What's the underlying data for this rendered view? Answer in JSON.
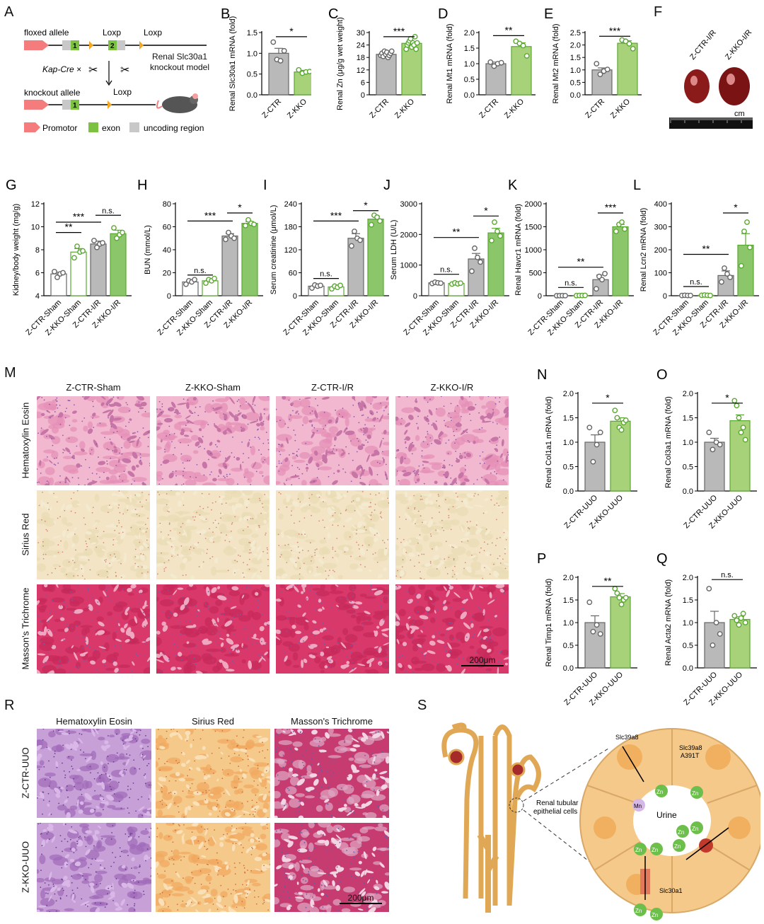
{
  "panels": {
    "A": {
      "letter": "A",
      "floxed_allele": "floxed allele",
      "loxp1": "Loxp",
      "loxp2": "Loxp",
      "kapcre": "Kap-Cre ×",
      "knockout_allele": "knockout allele",
      "loxp3": "Loxp",
      "model_line1": "Renal Slc30a1",
      "model_line2": "knockout model",
      "legend_promotor": "Promotor",
      "legend_exon": "exon",
      "legend_uncoding": "uncoding region",
      "exon1": "1",
      "exon2": "2",
      "exon1b": "1"
    },
    "F": {
      "letter": "F",
      "label1": "Z-CTR-I/R",
      "label2": "Z-KKO-I/R",
      "ruler_unit": "cm"
    },
    "M": {
      "letter": "M",
      "cols": [
        "Z-CTR-Sham",
        "Z-KKO-Sham",
        "Z-CTR-I/R",
        "Z-KKO-I/R"
      ],
      "rows": [
        "Hematoxylin Eosin",
        "Sirius Red",
        "Masson's Trichrome"
      ],
      "scale": "200μm"
    },
    "R": {
      "letter": "R",
      "cols": [
        "Hematoxylin Eosin",
        "Sirius Red",
        "Masson's Trichrome"
      ],
      "rows": [
        "Z-CTR-UUO",
        "Z-KKO-UUO"
      ],
      "scale": "200μm"
    },
    "S": {
      "letter": "S",
      "tubular": "Renal tubular",
      "epithelial": "epithelial cells",
      "slc39a8": "Slc39a8",
      "slc39a8m1": "Slc39a8",
      "slc39a8m2": "A391T",
      "mn": "Mn",
      "zn": "Zn",
      "urine": "Urine",
      "slc30a1": "Slc30a1"
    }
  },
  "colors": {
    "grey": "#b9b9b9",
    "green": "#a8d27a",
    "green_dark": "#5aa832",
    "promotor": "#f47c7c",
    "exon": "#7cc142",
    "loxp": "#f5a623"
  },
  "chart_data": [
    {
      "id": "B",
      "type": "bar",
      "letter": "B",
      "categories": [
        "Z-CTR",
        "Z-KKO"
      ],
      "ylabel": "Renal Slc30a1 mRNA (fold)",
      "yticks": [
        0.0,
        0.5,
        1.0,
        1.5
      ],
      "ylim": [
        0,
        1.5
      ],
      "values": [
        1.0,
        0.55
      ],
      "errors": [
        0.12,
        0.04
      ],
      "points": [
        [
          1.27,
          0.85,
          0.82,
          1.06
        ],
        [
          0.6,
          0.52,
          0.55,
          0.56
        ]
      ],
      "sig": [
        {
          "a": 0,
          "b": 1,
          "label": "*",
          "y": 1.4
        }
      ]
    },
    {
      "id": "C",
      "type": "bar",
      "letter": "C",
      "categories": [
        "Z-CTR",
        "Z-KKO"
      ],
      "ylabel": "Renal Zn (μg/g wet weight)",
      "yticks": [
        0,
        6,
        12,
        18,
        24,
        30
      ],
      "ylim": [
        0,
        30
      ],
      "values": [
        19.5,
        24.8
      ],
      "errors": [
        0.5,
        0.8
      ],
      "points": [
        [
          19,
          20,
          18.5,
          21,
          19.5,
          20.5,
          18,
          19,
          20,
          21
        ],
        [
          22,
          24,
          25,
          26,
          27,
          23,
          25,
          24,
          28,
          22,
          25
        ]
      ],
      "sig": [
        {
          "a": 0,
          "b": 1,
          "label": "***",
          "y": 28
        }
      ]
    },
    {
      "id": "D",
      "type": "bar",
      "letter": "D",
      "categories": [
        "Z-CTR",
        "Z-KKO"
      ],
      "ylabel": "Renal Mt1 mRNA (fold)",
      "yticks": [
        0.0,
        0.5,
        1.0,
        1.5,
        2.0
      ],
      "ylim": [
        0,
        2.0
      ],
      "values": [
        1.0,
        1.55
      ],
      "errors": [
        0.05,
        0.12
      ],
      "points": [
        [
          1.05,
          0.92,
          1.0,
          1.03
        ],
        [
          1.72,
          1.65,
          1.58,
          1.25
        ]
      ],
      "sig": [
        {
          "a": 0,
          "b": 1,
          "label": "**",
          "y": 1.9
        }
      ]
    },
    {
      "id": "E",
      "type": "bar",
      "letter": "E",
      "categories": [
        "Z-CTR",
        "Z-KKO"
      ],
      "ylabel": "Renal Mt2 mRNA (fold)",
      "yticks": [
        0.0,
        0.5,
        1.0,
        1.5,
        2.0,
        2.5
      ],
      "ylim": [
        0,
        2.5
      ],
      "values": [
        1.0,
        2.07
      ],
      "errors": [
        0.08,
        0.1
      ],
      "points": [
        [
          1.25,
          0.82,
          0.95,
          1.02
        ],
        [
          2.2,
          2.15,
          2.05,
          1.85
        ]
      ],
      "sig": [
        {
          "a": 0,
          "b": 1,
          "label": "***",
          "y": 2.35
        }
      ]
    },
    {
      "id": "G",
      "type": "bar",
      "letter": "G",
      "categories": [
        "Z-CTR-Sham",
        "Z-KKO-Sham",
        "Z-CTR-I/R",
        "Z-KKO-I/R"
      ],
      "ylabel": "Kidney/body weight (mg/g)",
      "yticks": [
        4,
        6,
        8,
        10,
        12
      ],
      "ylim": [
        4,
        12
      ],
      "values": [
        5.9,
        7.8,
        8.5,
        9.4
      ],
      "errors": [
        0.15,
        0.3,
        0.25,
        0.3
      ],
      "points": [
        [
          6.1,
          5.6,
          5.9,
          6.0
        ],
        [
          7.3,
          8.3,
          7.8,
          7.9
        ],
        [
          8.8,
          8.2,
          8.5,
          8.6
        ],
        [
          9.9,
          9.0,
          9.3,
          9.5
        ]
      ],
      "hollow": [
        0,
        1
      ],
      "sig": [
        {
          "a": 0,
          "b": 1,
          "label": "**",
          "y": 9.5
        },
        {
          "a": 0,
          "b": 2,
          "label": "***",
          "y": 10.4
        },
        {
          "a": 2,
          "b": 3,
          "label": "n.s.",
          "y": 11.0
        }
      ]
    },
    {
      "id": "H",
      "type": "bar",
      "letter": "H",
      "categories": [
        "Z-CTR-Sham",
        "Z-KKO-Sham",
        "Z-CTR-I/R",
        "Z-KKO-I/R"
      ],
      "ylabel": "BUN (mmol/L)",
      "yticks": [
        0,
        20,
        40,
        60,
        80
      ],
      "ylim": [
        0,
        80
      ],
      "values": [
        12,
        13,
        52,
        63
      ],
      "errors": [
        1,
        1,
        2,
        1.5
      ],
      "points": [
        [
          10,
          13,
          12,
          14
        ],
        [
          11,
          14,
          13,
          15
        ],
        [
          49,
          55,
          52,
          50
        ],
        [
          61,
          66,
          63,
          62
        ]
      ],
      "hollow": [
        0,
        1
      ],
      "sig": [
        {
          "a": 0,
          "b": 1,
          "label": "n.s.",
          "y": 18
        },
        {
          "a": 0,
          "b": 2,
          "label": "***",
          "y": 65
        },
        {
          "a": 2,
          "b": 3,
          "label": "*",
          "y": 72
        }
      ]
    },
    {
      "id": "I",
      "type": "bar",
      "letter": "I",
      "categories": [
        "Z-CTR-Sham",
        "Z-KKO-Sham",
        "Z-CTR-I/R",
        "Z-KKO-I/R"
      ],
      "ylabel": "Serum creatinine (μmol/L)",
      "yticks": [
        0,
        60,
        120,
        180,
        240
      ],
      "ylim": [
        0,
        240
      ],
      "values": [
        25,
        23,
        150,
        200
      ],
      "errors": [
        2,
        2,
        12,
        8
      ],
      "points": [
        [
          20,
          28,
          25,
          27
        ],
        [
          18,
          25,
          22,
          27
        ],
        [
          130,
          168,
          150,
          145
        ],
        [
          185,
          210,
          205,
          195
        ]
      ],
      "hollow": [
        0,
        1
      ],
      "sig": [
        {
          "a": 0,
          "b": 1,
          "label": "n.s.",
          "y": 45
        },
        {
          "a": 0,
          "b": 2,
          "label": "***",
          "y": 195
        },
        {
          "a": 2,
          "b": 3,
          "label": "*",
          "y": 222
        }
      ]
    },
    {
      "id": "J",
      "type": "bar",
      "letter": "J",
      "categories": [
        "Z-CTR-Sham",
        "Z-KKO-Sham",
        "Z-CTR-I/R",
        "Z-KKO-I/R"
      ],
      "ylabel": "Serum LDH (U/L)",
      "yticks": [
        0,
        1000,
        2000,
        3000
      ],
      "ylim": [
        0,
        3000
      ],
      "values": [
        420,
        400,
        1200,
        2050
      ],
      "errors": [
        20,
        20,
        180,
        150
      ],
      "points": [
        [
          400,
          440,
          420,
          410
        ],
        [
          380,
          420,
          390,
          410
        ],
        [
          800,
          1550,
          1250,
          1100
        ],
        [
          1800,
          2400,
          2100,
          1950
        ]
      ],
      "hollow": [
        0,
        1
      ],
      "sig": [
        {
          "a": 0,
          "b": 1,
          "label": "n.s.",
          "y": 700
        },
        {
          "a": 0,
          "b": 2,
          "label": "**",
          "y": 1900
        },
        {
          "a": 2,
          "b": 3,
          "label": "*",
          "y": 2600
        }
      ]
    },
    {
      "id": "K",
      "type": "bar",
      "letter": "K",
      "categories": [
        "Z-CTR-Sham",
        "Z-KKO-Sham",
        "Z-CTR-I/R",
        "Z-KKO-I/R"
      ],
      "ylabel": "Renal Havcr1 mRNA (fold)",
      "yticks": [
        0,
        500,
        1000,
        1500,
        2000
      ],
      "ylim": [
        0,
        2000
      ],
      "values": [
        2,
        5,
        350,
        1500
      ],
      "errors": [
        2,
        3,
        100,
        50
      ],
      "points": [
        [
          1,
          2,
          3,
          2
        ],
        [
          3,
          6,
          5,
          7
        ],
        [
          150,
          420,
          350,
          480
        ],
        [
          1400,
          1550,
          1600,
          1450
        ]
      ],
      "hollow": [
        0,
        1
      ],
      "sig": [
        {
          "a": 0,
          "b": 1,
          "label": "n.s.",
          "y": 180
        },
        {
          "a": 0,
          "b": 2,
          "label": "**",
          "y": 620
        },
        {
          "a": 2,
          "b": 3,
          "label": "***",
          "y": 1800
        }
      ]
    },
    {
      "id": "L",
      "type": "bar",
      "letter": "L",
      "categories": [
        "Z-CTR-Sham",
        "Z-KKO-Sham",
        "Z-CTR-I/R",
        "Z-KKO-I/R"
      ],
      "ylabel": "Renal Lcn2 mRNA (fold)",
      "yticks": [
        0,
        100,
        200,
        300,
        400
      ],
      "ylim": [
        0,
        400
      ],
      "values": [
        1,
        2,
        88,
        220
      ],
      "errors": [
        1,
        1,
        20,
        50
      ],
      "points": [
        [
          1,
          2,
          1,
          1
        ],
        [
          2,
          3,
          2,
          1
        ],
        [
          60,
          120,
          95,
          80
        ],
        [
          130,
          280,
          320,
          210
        ]
      ],
      "hollow": [
        0,
        1
      ],
      "sig": [
        {
          "a": 0,
          "b": 1,
          "label": "n.s.",
          "y": 40
        },
        {
          "a": 0,
          "b": 2,
          "label": "**",
          "y": 180
        },
        {
          "a": 2,
          "b": 3,
          "label": "*",
          "y": 360
        }
      ]
    },
    {
      "id": "N",
      "type": "bar",
      "letter": "N",
      "categories": [
        "Z-CTR-UUO",
        "Z-KKO-UUO"
      ],
      "ylabel": "Renal Col1a1 mRNA (fold)",
      "yticks": [
        0.0,
        0.5,
        1.0,
        1.5,
        2.0
      ],
      "ylim": [
        0,
        2.0
      ],
      "values": [
        1.0,
        1.43
      ],
      "errors": [
        0.15,
        0.07
      ],
      "points": [
        [
          1.3,
          0.6,
          0.95,
          1.2
        ],
        [
          1.65,
          1.5,
          1.3,
          1.25,
          1.4,
          1.45
        ]
      ],
      "sig": [
        {
          "a": 0,
          "b": 1,
          "label": "*",
          "y": 1.8
        }
      ]
    },
    {
      "id": "O",
      "type": "bar",
      "letter": "O",
      "categories": [
        "Z-CTR-UUO",
        "Z-KKO-UUO"
      ],
      "ylabel": "Renal Col3a1 mRNA (fold)",
      "yticks": [
        0.0,
        0.5,
        1.0,
        1.5,
        2.0
      ],
      "ylim": [
        0,
        2.0
      ],
      "values": [
        1.0,
        1.44
      ],
      "errors": [
        0.08,
        0.12
      ],
      "points": [
        [
          1.2,
          0.85,
          1.0,
          0.95
        ],
        [
          1.85,
          1.75,
          1.5,
          1.2,
          1.3,
          1.05
        ]
      ],
      "sig": [
        {
          "a": 0,
          "b": 1,
          "label": "*",
          "y": 1.8
        }
      ]
    },
    {
      "id": "P",
      "type": "bar",
      "letter": "P",
      "categories": [
        "Z-CTR-UUO",
        "Z-KKO-UUO"
      ],
      "ylabel": "Renal Timp1 mRNA (fold)",
      "yticks": [
        0.0,
        0.5,
        1.0,
        1.5,
        2.0
      ],
      "ylim": [
        0,
        2.0
      ],
      "values": [
        1.0,
        1.57
      ],
      "errors": [
        0.15,
        0.07
      ],
      "points": [
        [
          1.45,
          0.8,
          0.95,
          0.75
        ],
        [
          1.75,
          1.65,
          1.55,
          1.4,
          1.5,
          1.55
        ]
      ],
      "sig": [
        {
          "a": 0,
          "b": 1,
          "label": "**",
          "y": 1.8
        }
      ]
    },
    {
      "id": "Q",
      "type": "bar",
      "letter": "Q",
      "categories": [
        "Z-CTR-UUO",
        "Z-KKO-UUO"
      ],
      "ylabel": "Renal Acta2 mRNA (fold)",
      "yticks": [
        0.0,
        0.5,
        1.0,
        1.5,
        2.0
      ],
      "ylim": [
        0,
        2.0
      ],
      "values": [
        1.0,
        1.07
      ],
      "errors": [
        0.25,
        0.06
      ],
      "points": [
        [
          1.75,
          0.5,
          1.0,
          0.75
        ],
        [
          1.15,
          1.05,
          0.95,
          1.1,
          1.2,
          1.0
        ]
      ],
      "sig": [
        {
          "a": 0,
          "b": 1,
          "label": "n.s.",
          "y": 1.95
        }
      ]
    }
  ]
}
